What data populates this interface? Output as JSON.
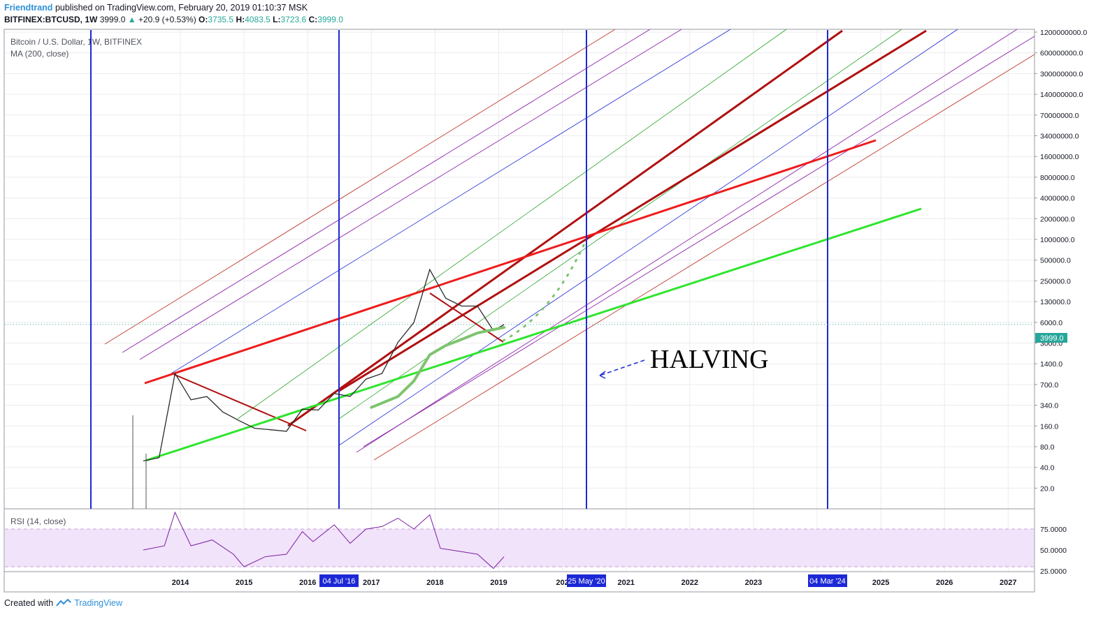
{
  "header": {
    "author": "Friendtrand",
    "published": "published on TradingView.com, February 20, 2019 01:10:37 MSK",
    "symbol": "BITFINEX:BTCUSD, 1W",
    "close": "3999.0",
    "change": "+20.9 (+0.53%)",
    "o_label": "O:",
    "o_val": "3735.5",
    "h_label": "H:",
    "h_val": "4083.5",
    "l_label": "L:",
    "l_val": "3723.6",
    "c_label": "C:",
    "c_val": "3999.0"
  },
  "pane": {
    "title": "Bitcoin / U.S. Dollar, 1W, BITFINEX",
    "indicator": "MA (200, close)",
    "rsi_title": "RSI (14, close)",
    "annotation": "HALVING",
    "last_price_tag": "3999.0"
  },
  "footer": {
    "created_with": "Created with",
    "brand": "TradingView"
  },
  "colors": {
    "halving_line": "#1c28d6",
    "red_line": "#ee1c1c",
    "green_line": "#2ee52e",
    "dark_red": "#b01010",
    "ma": "#7dc46f",
    "rsi": "#7b1fa2",
    "rsi_band": "#f1e3fa"
  },
  "chart_data": [
    {
      "type": "line",
      "scale": "log",
      "y_ticks": [
        "1200000000.0",
        "600000000.0",
        "300000000.0",
        "140000000.0",
        "70000000.0",
        "34000000.0",
        "16000000.0",
        "8000000.0",
        "4000000.0",
        "2000000.0",
        "1000000.0",
        "500000.0",
        "250000.0",
        "130000.0",
        "6000.0",
        "3000.0",
        "1400.0",
        "700.0",
        "340.0",
        "160.0",
        "80.0",
        "40.0",
        "20.0"
      ],
      "x_ticks": [
        "2014",
        "2015",
        "2016",
        "2017",
        "2018",
        "2019",
        "202",
        "2021",
        "2022",
        "2023",
        "2025",
        "2026",
        "2027"
      ],
      "x_markers": [
        "04 Jul '16",
        "25 May '20",
        "04 Mar '24"
      ],
      "series": [
        {
          "x": [
            "2013-06",
            "2013-09",
            "2013-12",
            "2014-03",
            "2014-06",
            "2014-09",
            "2014-12",
            "2015-03",
            "2015-06",
            "2015-09",
            "2015-12",
            "2016-03",
            "2016-06",
            "2016-09",
            "2016-12",
            "2017-03",
            "2017-06",
            "2017-09",
            "2017-12",
            "2018-03",
            "2018-06",
            "2018-09",
            "2018-12",
            "2019-02"
          ],
          "y": [
            110,
            120,
            1100,
            550,
            600,
            400,
            320,
            260,
            250,
            240,
            430,
            420,
            650,
            600,
            950,
            1100,
            2500,
            4200,
            17000,
            8000,
            6500,
            6500,
            3400,
            3999
          ]
        },
        {
          "x": [
            "2017-01",
            "2017-06",
            "2017-09",
            "2017-12",
            "2018-03",
            "2018-06",
            "2018-09",
            "2018-12",
            "2019-02"
          ],
          "y": [
            450,
            600,
            900,
            1800,
            2300,
            2700,
            3200,
            3500,
            3700
          ]
        }
      ],
      "last_price": 3999.0,
      "grid": true
    },
    {
      "type": "line",
      "y_ticks": [
        "75.0000",
        "50.0000",
        "25.0000"
      ],
      "ylim": [
        25,
        85
      ],
      "series": [
        {
          "x": [
            "2013-06",
            "2013-10",
            "2013-12",
            "2014-03",
            "2014-07",
            "2014-11",
            "2015-01",
            "2015-05",
            "2015-09",
            "2015-12",
            "2016-02",
            "2016-06",
            "2016-09",
            "2016-12",
            "2017-03",
            "2017-06",
            "2017-09",
            "2017-12",
            "2018-02",
            "2018-06",
            "2018-09",
            "2018-12",
            "2019-01",
            "2019-02"
          ],
          "y": [
            50,
            55,
            95,
            55,
            62,
            45,
            30,
            42,
            45,
            72,
            60,
            80,
            58,
            75,
            78,
            88,
            75,
            92,
            52,
            48,
            45,
            28,
            35,
            42
          ]
        }
      ]
    }
  ]
}
